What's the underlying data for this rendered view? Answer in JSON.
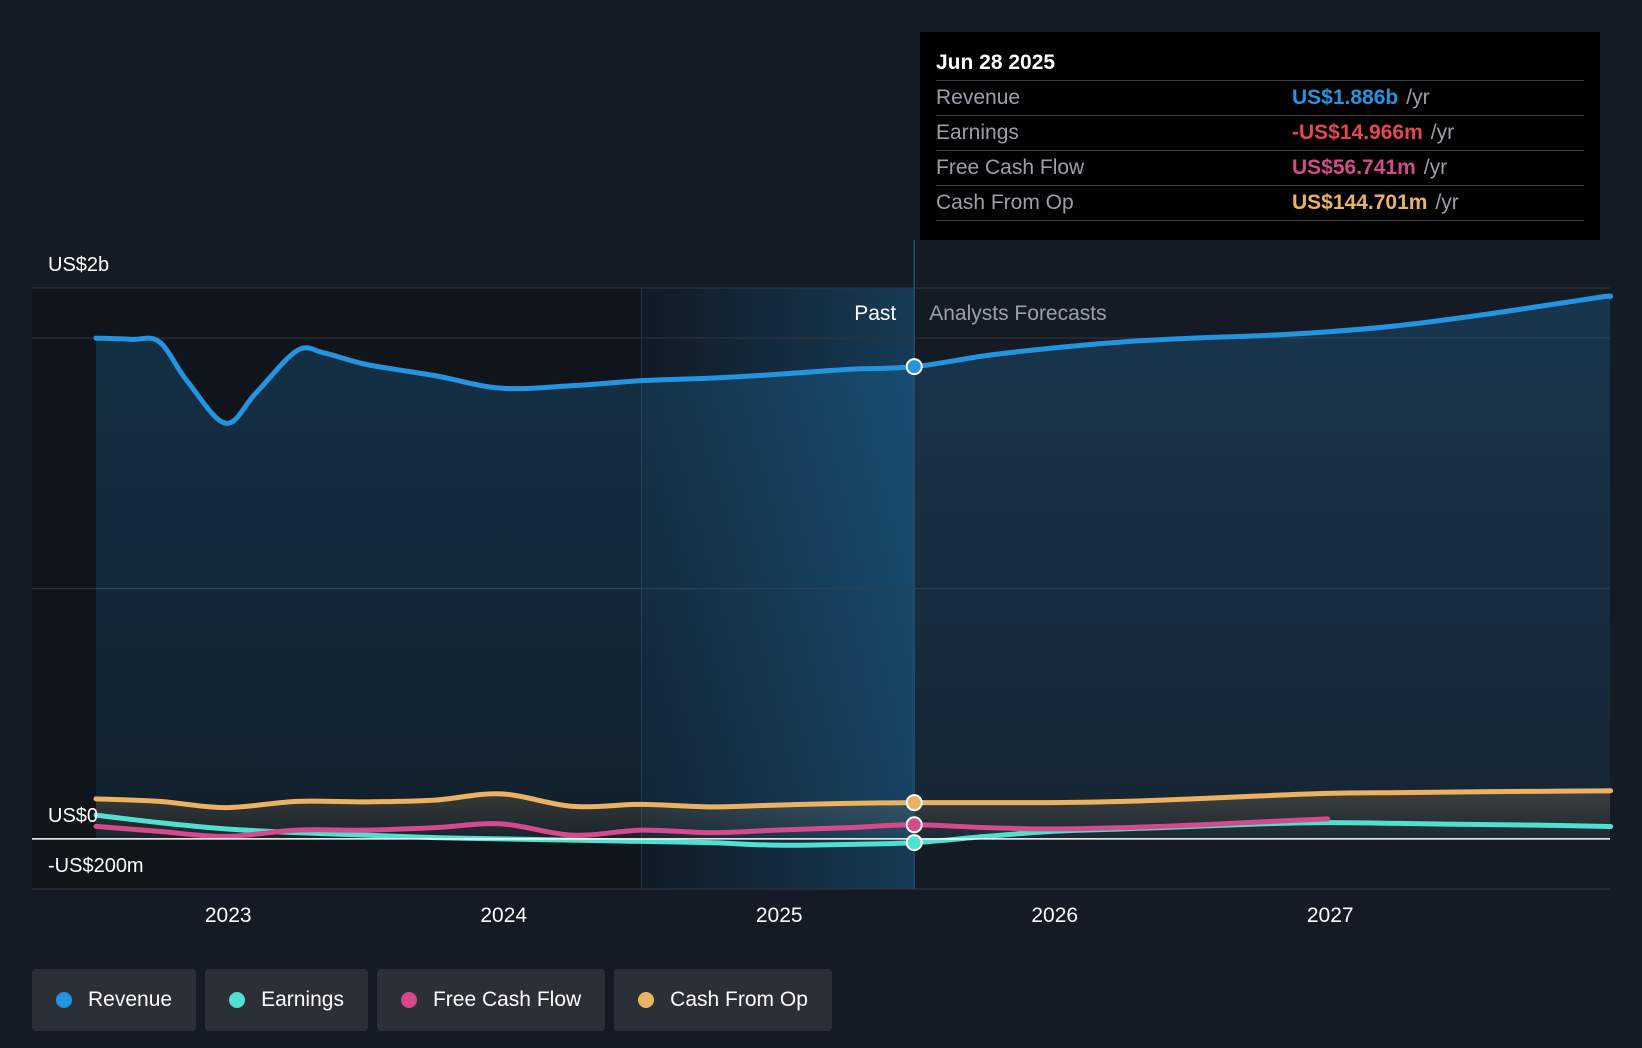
{
  "chart_data": {
    "type": "line",
    "y_axis": {
      "top_label": "US$2b",
      "zero_label": "US$0",
      "bottom_label": "-US$200m",
      "range_musd": [
        -200,
        2200
      ]
    },
    "x_axis": {
      "ticks": [
        "2023",
        "2024",
        "2025",
        "2026",
        "2027"
      ],
      "range": [
        2022.5,
        2028
      ]
    },
    "region_labels": {
      "past": "Past",
      "forecast": "Analysts Forecasts"
    },
    "divider_x": 2025.49,
    "shaded_past_start": 2024.5,
    "grid": true,
    "legend_position": "bottom-left",
    "series": [
      {
        "name": "Revenue",
        "color": "#2394df",
        "area": true,
        "points": [
          [
            2022.52,
            2000
          ],
          [
            2022.65,
            1995
          ],
          [
            2022.75,
            1985
          ],
          [
            2022.85,
            1830
          ],
          [
            2022.99,
            1660
          ],
          [
            2023.1,
            1780
          ],
          [
            2023.25,
            1950
          ],
          [
            2023.35,
            1940
          ],
          [
            2023.5,
            1895
          ],
          [
            2023.75,
            1850
          ],
          [
            2023.99,
            1800
          ],
          [
            2024.25,
            1810
          ],
          [
            2024.5,
            1830
          ],
          [
            2024.75,
            1840
          ],
          [
            2024.99,
            1855
          ],
          [
            2025.25,
            1875
          ],
          [
            2025.49,
            1886
          ],
          [
            2025.75,
            1930
          ],
          [
            2025.99,
            1960
          ],
          [
            2026.25,
            1985
          ],
          [
            2026.5,
            2000
          ],
          [
            2026.75,
            2010
          ],
          [
            2026.99,
            2025
          ],
          [
            2027.25,
            2050
          ],
          [
            2027.5,
            2085
          ],
          [
            2027.75,
            2125
          ],
          [
            2027.99,
            2165
          ]
        ]
      },
      {
        "name": "Earnings",
        "color": "#4fe0cf",
        "points": [
          [
            2022.52,
            95
          ],
          [
            2022.75,
            65
          ],
          [
            2022.99,
            40
          ],
          [
            2023.25,
            25
          ],
          [
            2023.5,
            15
          ],
          [
            2023.75,
            5
          ],
          [
            2023.99,
            0
          ],
          [
            2024.25,
            -5
          ],
          [
            2024.5,
            -10
          ],
          [
            2024.75,
            -15
          ],
          [
            2024.99,
            -25
          ],
          [
            2025.25,
            -22
          ],
          [
            2025.49,
            -14.966
          ],
          [
            2025.75,
            10
          ],
          [
            2025.99,
            30
          ],
          [
            2026.25,
            40
          ],
          [
            2026.5,
            50
          ],
          [
            2026.75,
            60
          ],
          [
            2026.99,
            65
          ],
          [
            2027.25,
            62
          ],
          [
            2027.5,
            58
          ],
          [
            2027.75,
            55
          ],
          [
            2027.99,
            50
          ]
        ]
      },
      {
        "name": "Free Cash Flow",
        "color": "#d44a8b",
        "points": [
          [
            2022.52,
            50
          ],
          [
            2022.75,
            30
          ],
          [
            2022.99,
            10
          ],
          [
            2023.25,
            35
          ],
          [
            2023.5,
            35
          ],
          [
            2023.75,
            45
          ],
          [
            2023.99,
            60
          ],
          [
            2024.25,
            15
          ],
          [
            2024.5,
            35
          ],
          [
            2024.75,
            25
          ],
          [
            2024.99,
            35
          ],
          [
            2025.25,
            45
          ],
          [
            2025.49,
            56.741
          ],
          [
            2025.75,
            45
          ],
          [
            2025.99,
            40
          ],
          [
            2026.25,
            45
          ],
          [
            2026.5,
            55
          ],
          [
            2026.75,
            68
          ],
          [
            2026.99,
            80
          ]
        ]
      },
      {
        "name": "Cash From Op",
        "color": "#ebb261",
        "points": [
          [
            2022.52,
            160
          ],
          [
            2022.75,
            150
          ],
          [
            2022.99,
            125
          ],
          [
            2023.25,
            150
          ],
          [
            2023.5,
            148
          ],
          [
            2023.75,
            155
          ],
          [
            2023.99,
            180
          ],
          [
            2024.25,
            130
          ],
          [
            2024.5,
            138
          ],
          [
            2024.75,
            128
          ],
          [
            2024.99,
            135
          ],
          [
            2025.25,
            142
          ],
          [
            2025.49,
            144.701
          ],
          [
            2025.75,
            145
          ],
          [
            2025.99,
            145
          ],
          [
            2026.25,
            150
          ],
          [
            2026.5,
            160
          ],
          [
            2026.75,
            172
          ],
          [
            2026.99,
            182
          ],
          [
            2027.25,
            185
          ],
          [
            2027.5,
            188
          ],
          [
            2027.75,
            190
          ],
          [
            2027.99,
            192
          ]
        ]
      }
    ]
  },
  "tooltip": {
    "date": "Jun 28 2025",
    "unit": "/yr",
    "rows": [
      {
        "label": "Revenue",
        "value": "US$1.886b",
        "color": "#2394df"
      },
      {
        "label": "Earnings",
        "value": "-US$14.966m",
        "color": "#e5474e"
      },
      {
        "label": "Free Cash Flow",
        "value": "US$56.741m",
        "color": "#d44a8b"
      },
      {
        "label": "Cash From Op",
        "value": "US$144.701m",
        "color": "#ebb261"
      }
    ]
  },
  "legend": [
    {
      "label": "Revenue",
      "color": "#2394df"
    },
    {
      "label": "Earnings",
      "color": "#4fe0cf"
    },
    {
      "label": "Free Cash Flow",
      "color": "#d44a8b"
    },
    {
      "label": "Cash From Op",
      "color": "#ebb261"
    }
  ]
}
